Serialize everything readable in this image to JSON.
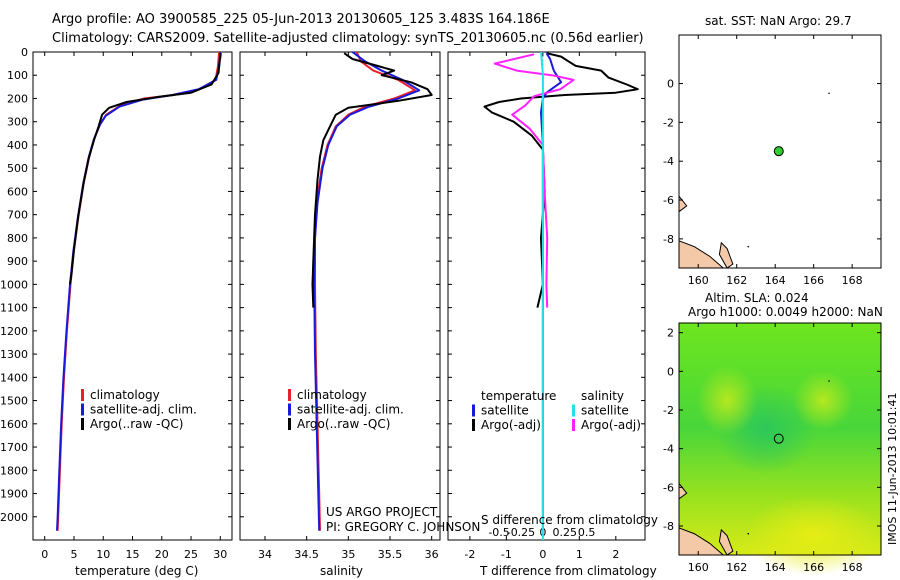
{
  "header": {
    "line1": "Argo profile: AO 3900585_225 05-Jun-2013 20130605_125 3.483S 164.186E",
    "line2": "Climatology: CARS2009. Satellite-adjusted climatology: synTS_20130605.nc (0.56d earlier)"
  },
  "project": {
    "line1": "US ARGO PROJECT",
    "line2": "PI: GREGORY C. JOHNSON"
  },
  "timestamp": "IMOS 11-Jun-2013 10:01:41",
  "colors": {
    "climatology": "#e8202a",
    "satellite": "#1a1adc",
    "argo": "#000000",
    "sal_sat": "#22e0ea",
    "sal_argo": "#ff22ff",
    "sst_dot": "#33cc33"
  },
  "chart_data": [
    {
      "id": "temperature",
      "type": "line",
      "xlabel": "temperature (deg C)",
      "xlim": [
        -2,
        32
      ],
      "ylim": [
        0,
        2100
      ],
      "y_inverted": true,
      "xticks": [
        "0",
        "5",
        "10",
        "15",
        "20",
        "25",
        "30"
      ],
      "xtick_values": [
        0,
        5,
        10,
        15,
        20,
        25,
        30
      ],
      "yticks": [
        "0",
        "100",
        "200",
        "300",
        "400",
        "500",
        "600",
        "700",
        "800",
        "900",
        "1000",
        "1100",
        "1200",
        "1300",
        "1400",
        "1500",
        "1600",
        "1700",
        "1800",
        "1900",
        "2000"
      ],
      "legend": [
        "climatology",
        "satellite-adj. clim.",
        "Argo(..raw -QC)"
      ],
      "series": [
        {
          "name": "climatology",
          "color": "climatology",
          "points": [
            [
              29.8,
              0
            ],
            [
              29.6,
              60
            ],
            [
              29.2,
              120
            ],
            [
              26.5,
              160
            ],
            [
              22,
              185
            ],
            [
              17,
              200
            ],
            [
              13,
              230
            ],
            [
              10.5,
              270
            ],
            [
              9.5,
              310
            ],
            [
              8.5,
              370
            ],
            [
              7.6,
              450
            ],
            [
              6.7,
              560
            ],
            [
              5.8,
              700
            ],
            [
              5.0,
              850
            ],
            [
              4.4,
              1000
            ],
            [
              3.8,
              1200
            ],
            [
              3.3,
              1400
            ],
            [
              2.9,
              1600
            ],
            [
              2.6,
              1800
            ],
            [
              2.3,
              2000
            ],
            [
              2.2,
              2060
            ]
          ]
        },
        {
          "name": "satellite",
          "color": "satellite",
          "points": [
            [
              30.0,
              0
            ],
            [
              29.8,
              60
            ],
            [
              29.3,
              120
            ],
            [
              26.3,
              160
            ],
            [
              21.8,
              185
            ],
            [
              16.8,
              205
            ],
            [
              12.8,
              235
            ],
            [
              10.4,
              275
            ],
            [
              9.4,
              315
            ],
            [
              8.4,
              375
            ],
            [
              7.5,
              455
            ],
            [
              6.6,
              565
            ],
            [
              5.7,
              705
            ],
            [
              4.9,
              855
            ],
            [
              4.3,
              1005
            ],
            [
              3.7,
              1205
            ],
            [
              3.2,
              1405
            ],
            [
              2.8,
              1605
            ],
            [
              2.5,
              1805
            ],
            [
              2.2,
              2005
            ],
            [
              2.1,
              2060
            ]
          ]
        },
        {
          "name": "argo",
          "color": "argo",
          "points": [
            [
              30.1,
              5
            ],
            [
              29.9,
              40
            ],
            [
              29.7,
              90
            ],
            [
              28.5,
              140
            ],
            [
              25,
              175
            ],
            [
              19,
              195
            ],
            [
              14,
              215
            ],
            [
              11,
              240
            ],
            [
              9.8,
              270
            ],
            [
              9.2,
              320
            ],
            [
              8.4,
              380
            ],
            [
              7.5,
              460
            ],
            [
              6.6,
              570
            ],
            [
              5.7,
              710
            ],
            [
              5.0,
              850
            ],
            [
              4.6,
              950
            ],
            [
              4.3,
              1000
            ]
          ]
        }
      ]
    },
    {
      "id": "salinity",
      "type": "line",
      "xlabel": "salinity",
      "xlim": [
        33.7,
        36.1
      ],
      "ylim": [
        0,
        2100
      ],
      "y_inverted": true,
      "xticks": [
        "34",
        "34.5",
        "35",
        "35.5",
        "36"
      ],
      "xtick_values": [
        34,
        34.5,
        35,
        35.5,
        36
      ],
      "legend": [
        "climatology",
        "satellite-adj. clim.",
        "Argo(..raw -QC)"
      ],
      "series": [
        {
          "name": "climatology",
          "color": "climatology",
          "points": [
            [
              35.1,
              0
            ],
            [
              35.15,
              40
            ],
            [
              35.3,
              80
            ],
            [
              35.6,
              120
            ],
            [
              35.8,
              165
            ],
            [
              35.55,
              200
            ],
            [
              35.2,
              235
            ],
            [
              35.0,
              270
            ],
            [
              34.85,
              320
            ],
            [
              34.75,
              400
            ],
            [
              34.68,
              500
            ],
            [
              34.62,
              650
            ],
            [
              34.6,
              800
            ],
            [
              34.6,
              1000
            ],
            [
              34.61,
              1300
            ],
            [
              34.63,
              1600
            ],
            [
              34.65,
              1900
            ],
            [
              34.66,
              2060
            ]
          ]
        },
        {
          "name": "satellite",
          "color": "satellite",
          "points": [
            [
              35.05,
              0
            ],
            [
              35.2,
              40
            ],
            [
              35.4,
              80
            ],
            [
              35.65,
              120
            ],
            [
              35.85,
              165
            ],
            [
              35.6,
              200
            ],
            [
              35.25,
              235
            ],
            [
              35.02,
              270
            ],
            [
              34.86,
              320
            ],
            [
              34.76,
              400
            ],
            [
              34.69,
              500
            ],
            [
              34.63,
              650
            ],
            [
              34.6,
              800
            ],
            [
              34.59,
              1000
            ],
            [
              34.6,
              1300
            ],
            [
              34.62,
              1600
            ],
            [
              34.64,
              1900
            ],
            [
              34.65,
              2060
            ]
          ]
        },
        {
          "name": "argo",
          "color": "argo",
          "points": [
            [
              34.95,
              5
            ],
            [
              35.05,
              30
            ],
            [
              35.35,
              60
            ],
            [
              35.55,
              80
            ],
            [
              35.4,
              100
            ],
            [
              35.75,
              130
            ],
            [
              35.95,
              160
            ],
            [
              36.0,
              185
            ],
            [
              35.6,
              210
            ],
            [
              35.0,
              240
            ],
            [
              34.85,
              270
            ],
            [
              34.78,
              320
            ],
            [
              34.7,
              380
            ],
            [
              34.66,
              450
            ],
            [
              34.63,
              550
            ],
            [
              34.6,
              700
            ],
            [
              34.58,
              900
            ],
            [
              34.57,
              1000
            ],
            [
              34.58,
              1100
            ]
          ]
        }
      ]
    },
    {
      "id": "difference",
      "type": "line",
      "xlabel": "T difference from climatology",
      "xlabel2": "S difference from climatology",
      "xlim": [
        -2.6,
        2.8
      ],
      "ylim": [
        0,
        2100
      ],
      "y_inverted": true,
      "xticks": [
        "-2",
        "-1",
        "0",
        "1",
        "2"
      ],
      "xtick_values": [
        -2,
        -1,
        0,
        1,
        2
      ],
      "sticks": [
        "-0.5",
        "-0.25",
        "0",
        "0.25",
        "0.5"
      ],
      "stick_values": [
        -0.5,
        -0.25,
        0,
        0.25,
        0.5
      ],
      "legend_temperature": [
        "temperature",
        "satellite",
        "Argo(-adj)"
      ],
      "legend_salinity": [
        "salinity",
        "satellite",
        "Argo(-adj)"
      ],
      "series": [
        {
          "name": "T argo",
          "color": "argo",
          "points": [
            [
              0.1,
              5
            ],
            [
              0.5,
              20
            ],
            [
              0.7,
              40
            ],
            [
              0.9,
              60
            ],
            [
              1.6,
              80
            ],
            [
              1.8,
              110
            ],
            [
              2.3,
              140
            ],
            [
              2.6,
              160
            ],
            [
              2.0,
              175
            ],
            [
              0.6,
              185
            ],
            [
              -0.6,
              200
            ],
            [
              -1.2,
              215
            ],
            [
              -1.6,
              235
            ],
            [
              -1.4,
              260
            ],
            [
              -0.8,
              300
            ],
            [
              -0.3,
              360
            ],
            [
              0.0,
              420
            ],
            [
              0.05,
              600
            ],
            [
              -0.05,
              800
            ],
            [
              0.0,
              1000
            ],
            [
              -0.15,
              1100
            ]
          ]
        },
        {
          "name": "T satellite",
          "color": "satellite",
          "points": [
            [
              0.1,
              5
            ],
            [
              0.2,
              30
            ],
            [
              0.3,
              80
            ],
            [
              0.5,
              130
            ],
            [
              0.1,
              175
            ],
            [
              0.0,
              200
            ],
            [
              -0.05,
              260
            ],
            [
              0.0,
              400
            ],
            [
              0.0,
              2050
            ]
          ]
        },
        {
          "name": "S argo",
          "color": "sal_argo",
          "points": [
            [
              -0.1,
              10
            ],
            [
              -0.55,
              50
            ],
            [
              -0.3,
              80
            ],
            [
              0.1,
              100
            ],
            [
              0.35,
              120
            ],
            [
              0.2,
              160
            ],
            [
              -0.1,
              190
            ],
            [
              -0.2,
              230
            ],
            [
              -0.35,
              270
            ],
            [
              -0.15,
              330
            ],
            [
              0.0,
              400
            ],
            [
              0.02,
              600
            ],
            [
              0.05,
              800
            ],
            [
              0.04,
              1000
            ],
            [
              0.05,
              1100
            ]
          ]
        },
        {
          "name": "S satellite",
          "color": "sal_sat",
          "points": [
            [
              -0.02,
              0
            ],
            [
              0.0,
              100
            ],
            [
              0.0,
              2100
            ]
          ]
        }
      ]
    },
    {
      "id": "sst_map",
      "type": "scatter",
      "title": "sat. SST: NaN Argo: 29.7",
      "xlim": [
        159,
        169.5
      ],
      "ylim": [
        -9.5,
        2.5
      ],
      "xticks": [
        "160",
        "162",
        "164",
        "166",
        "168"
      ],
      "xtick_values": [
        160,
        162,
        164,
        166,
        168
      ],
      "yticks": [
        "0",
        "-2",
        "-4",
        "-6",
        "-8"
      ],
      "ytick_values": [
        0,
        -2,
        -4,
        -6,
        -8
      ],
      "point": {
        "lon": 164.186,
        "lat": -3.483
      }
    },
    {
      "id": "sla_map",
      "type": "heatmap",
      "title": "Altim. SLA: 0.024",
      "subtitle": "Argo h1000: 0.0049 h2000: NaN",
      "xlim": [
        159,
        169.5
      ],
      "ylim": [
        -9.5,
        2.5
      ],
      "xticks": [
        "160",
        "162",
        "164",
        "166",
        "168"
      ],
      "xtick_values": [
        160,
        162,
        164,
        166,
        168
      ],
      "yticks": [
        "2",
        "0",
        "-2",
        "-4",
        "-6",
        "-8"
      ],
      "ytick_values": [
        2,
        0,
        -2,
        -4,
        -6,
        -8
      ],
      "point": {
        "lon": 164.186,
        "lat": -3.483
      }
    }
  ]
}
